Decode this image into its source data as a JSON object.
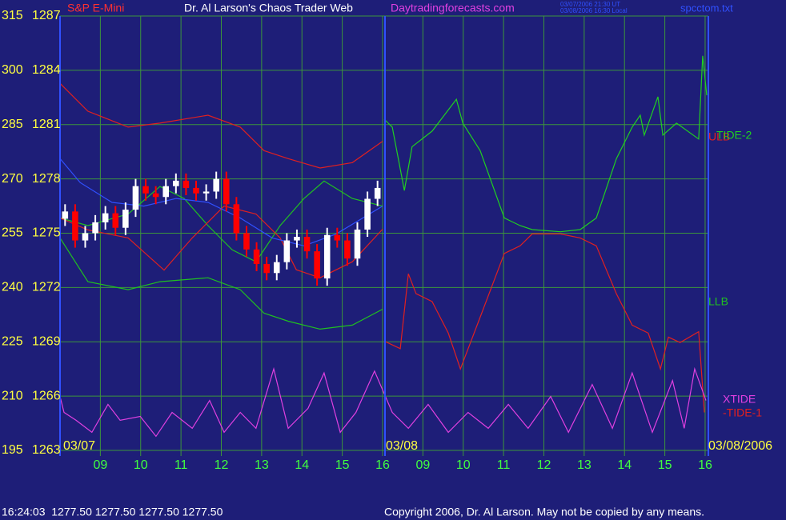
{
  "chart_data": {
    "type": "candlestick",
    "symbol": "S&P E-Mini",
    "title": "Dr. Al Larson's Chaos Trader Web",
    "website": "Daytradingforecasts.com",
    "timestamps": [
      "03/07/2006 21:30 UT",
      "03/08/2006 16:30 Local"
    ],
    "file": "spcctom.txt",
    "dates": [
      {
        "x": 8,
        "label": "03/07"
      },
      {
        "x": 16,
        "label": "03/08"
      },
      {
        "x": 24,
        "label": "03/08/2006"
      }
    ],
    "status": "16:24:03  1277.50 1277.50 1277.50 1277.50",
    "copyright": "Copyright 2006, Dr. Al Larson. May not be copied by any means.",
    "xlim": [
      8,
      24.08
    ],
    "xticks": [
      {
        "value": 9,
        "label": "09"
      },
      10,
      11,
      12,
      13,
      14,
      15,
      16,
      {
        "value": 17,
        "label": "09"
      },
      {
        "value": 18,
        "label": "10"
      },
      {
        "value": 19,
        "label": "11"
      },
      {
        "value": 20,
        "label": "12"
      },
      {
        "value": 21,
        "label": "13"
      },
      {
        "value": 22,
        "label": "14"
      },
      {
        "value": 23,
        "label": "15"
      },
      {
        "value": 24,
        "label": "16"
      }
    ],
    "ylim": [
      195,
      315
    ],
    "yticks": [
      195,
      210,
      225,
      240,
      255,
      270,
      285,
      300,
      315
    ],
    "y2lim": [
      1263,
      1287
    ],
    "y2ticks": [
      1263,
      1266,
      1269,
      1272,
      1275,
      1278,
      1281,
      1284,
      1287
    ],
    "grid": true,
    "grid_color": "#3c963c",
    "up_color": "#ffffff",
    "down_color": "#ff0000",
    "x": [
      8.125,
      8.375,
      8.625,
      8.875,
      9.125,
      9.375,
      9.625,
      9.875,
      10.125,
      10.375,
      10.625,
      10.875,
      11.125,
      11.375,
      11.625,
      11.875,
      12.125,
      12.375,
      12.625,
      12.875,
      13.125,
      13.375,
      13.625,
      13.875,
      14.125,
      14.375,
      14.625,
      14.875,
      15.125,
      15.375,
      15.625,
      15.875
    ],
    "open": [
      1275.8,
      1276.2,
      1274.6,
      1275.0,
      1275.6,
      1276.1,
      1275.3,
      1276.3,
      1277.6,
      1277.2,
      1277.0,
      1277.6,
      1277.9,
      1277.5,
      1277.2,
      1277.3,
      1278.0,
      1276.6,
      1275.0,
      1274.1,
      1273.3,
      1272.8,
      1273.4,
      1274.6,
      1274.8,
      1274.0,
      1272.5,
      1274.9,
      1274.6,
      1273.6,
      1275.2,
      1276.9
    ],
    "high": [
      1276.6,
      1276.6,
      1275.4,
      1276.0,
      1276.5,
      1276.5,
      1276.7,
      1278.0,
      1278.0,
      1277.6,
      1278.0,
      1278.3,
      1278.3,
      1277.9,
      1277.7,
      1278.4,
      1278.4,
      1277.0,
      1275.4,
      1274.5,
      1273.7,
      1273.8,
      1275.0,
      1275.2,
      1275.2,
      1274.4,
      1275.3,
      1275.3,
      1275.0,
      1275.6,
      1277.3,
      1277.9
    ],
    "low": [
      1275.4,
      1274.2,
      1274.2,
      1274.6,
      1275.2,
      1274.9,
      1274.9,
      1275.9,
      1276.8,
      1276.6,
      1276.6,
      1277.2,
      1277.1,
      1276.8,
      1276.8,
      1276.9,
      1276.2,
      1274.6,
      1273.7,
      1272.9,
      1272.4,
      1272.4,
      1273.0,
      1274.2,
      1273.6,
      1272.1,
      1272.1,
      1274.2,
      1273.2,
      1273.2,
      1274.8,
      1276.5
    ],
    "close": [
      1276.2,
      1274.6,
      1275.0,
      1275.6,
      1276.1,
      1275.3,
      1276.3,
      1277.6,
      1277.2,
      1277.0,
      1277.6,
      1277.9,
      1277.5,
      1277.2,
      1277.3,
      1278.0,
      1276.6,
      1275.0,
      1274.1,
      1273.3,
      1272.8,
      1273.4,
      1274.6,
      1274.8,
      1274.0,
      1272.5,
      1274.9,
      1274.6,
      1273.6,
      1275.2,
      1276.9,
      1277.5
    ],
    "series": [
      {
        "name": "ULB",
        "color": "#e02020",
        "x": [
          8.0,
          8.69,
          9.69,
          10.48,
          11.67,
          12.47,
          13.06,
          13.66,
          14.45,
          15.25,
          16.0
        ],
        "values": [
          296.4,
          288.7,
          284.3,
          285.4,
          287.6,
          284.3,
          277.8,
          275.6,
          273.0,
          274.5,
          280.4
        ]
      },
      {
        "name": "LLB",
        "color": "#20c020",
        "x": [
          8.0,
          8.69,
          9.69,
          10.48,
          11.67,
          12.47,
          13.06,
          13.66,
          14.45,
          15.25,
          16.0
        ],
        "values": [
          253.7,
          241.6,
          239.4,
          241.6,
          242.7,
          239.4,
          232.9,
          230.7,
          228.5,
          229.6,
          234.0
        ]
      },
      {
        "color": "#20c020",
        "x": [
          8.0,
          8.69,
          9.69,
          10.48,
          11.08,
          11.67,
          12.27,
          12.86,
          13.46,
          14.05,
          14.55,
          15.25,
          16.0
        ],
        "values": [
          259.2,
          257.1,
          260.3,
          267.9,
          264.6,
          257.1,
          250.4,
          247.1,
          257.1,
          264.6,
          269.4,
          264.6,
          262.5
        ]
      },
      {
        "color": "#e02020",
        "x": [
          8.0,
          8.69,
          9.69,
          10.58,
          11.28,
          12.07,
          12.86,
          13.46,
          13.86,
          14.45,
          15.25,
          16.0
        ],
        "values": [
          259.2,
          255.9,
          253.7,
          244.8,
          253.7,
          262.5,
          260.3,
          253.7,
          244.9,
          242.7,
          247.1,
          256.1
        ]
      },
      {
        "color": "#3050ff",
        "x": [
          8.0,
          8.5,
          9.29,
          10.08,
          10.88,
          11.67,
          12.47,
          13.26,
          14.05,
          14.85,
          16.0
        ],
        "values": [
          275.6,
          269.0,
          263.5,
          262.5,
          264.6,
          263.5,
          259.2,
          253.7,
          251.5,
          254.8,
          262.5
        ]
      },
      {
        "name": "TIDE-2",
        "color": "#20d020",
        "x": [
          16.04,
          16.24,
          16.54,
          16.73,
          17.23,
          17.83,
          17.99,
          18.42,
          19.02,
          19.41,
          19.71,
          20.41,
          20.9,
          21.3,
          21.8,
          22.19,
          22.39,
          22.49,
          22.83,
          22.95,
          23.29,
          23.84,
          23.94,
          24.04
        ],
        "values": [
          286.5,
          284.3,
          266.8,
          278.9,
          283.2,
          292.0,
          285.4,
          277.8,
          259.2,
          257.1,
          256.0,
          255.4,
          256.0,
          259.2,
          275.6,
          284.3,
          287.6,
          282.1,
          292.7,
          282.1,
          285.4,
          281.0,
          304.0,
          293.1
        ]
      },
      {
        "name": "-TIDE-1",
        "color": "#e02020",
        "x": [
          16.04,
          16.44,
          16.64,
          16.83,
          17.23,
          17.63,
          17.93,
          18.42,
          19.02,
          19.41,
          19.71,
          20.41,
          20.9,
          21.3,
          21.8,
          22.19,
          22.59,
          22.89,
          23.09,
          23.38,
          23.84,
          23.98
        ],
        "values": [
          225.2,
          223.1,
          243.8,
          238.3,
          236.1,
          227.4,
          217.5,
          231.8,
          249.4,
          251.5,
          254.8,
          254.8,
          253.7,
          251.5,
          238.3,
          229.6,
          227.4,
          217.5,
          226.3,
          224.8,
          227.8,
          205.5
        ]
      },
      {
        "name": "XTIDE",
        "color": "#e040e0",
        "x": [
          8.0,
          8.1,
          8.4,
          8.79,
          9.19,
          9.49,
          9.99,
          10.38,
          10.78,
          11.28,
          11.71,
          12.07,
          12.47,
          12.86,
          13.3,
          13.66,
          14.15,
          14.55,
          14.95,
          15.34,
          15.8,
          16.24,
          16.64,
          17.13,
          17.63,
          18.12,
          18.62,
          19.12,
          19.61,
          20.17,
          20.61,
          21.2,
          21.7,
          22.19,
          22.69,
          23.19,
          23.48,
          23.74,
          24.02
        ],
        "values": [
          209.9,
          205.5,
          203.3,
          200.0,
          207.7,
          203.3,
          204.4,
          198.9,
          205.5,
          201.1,
          208.8,
          200.0,
          205.5,
          201.1,
          217.5,
          201.1,
          206.6,
          216.4,
          200.0,
          205.5,
          216.9,
          205.5,
          201.1,
          207.7,
          200.0,
          205.5,
          201.1,
          207.7,
          201.1,
          209.9,
          200.0,
          213.2,
          201.1,
          216.4,
          200.0,
          214.3,
          201.1,
          217.5,
          208.8
        ]
      }
    ]
  }
}
